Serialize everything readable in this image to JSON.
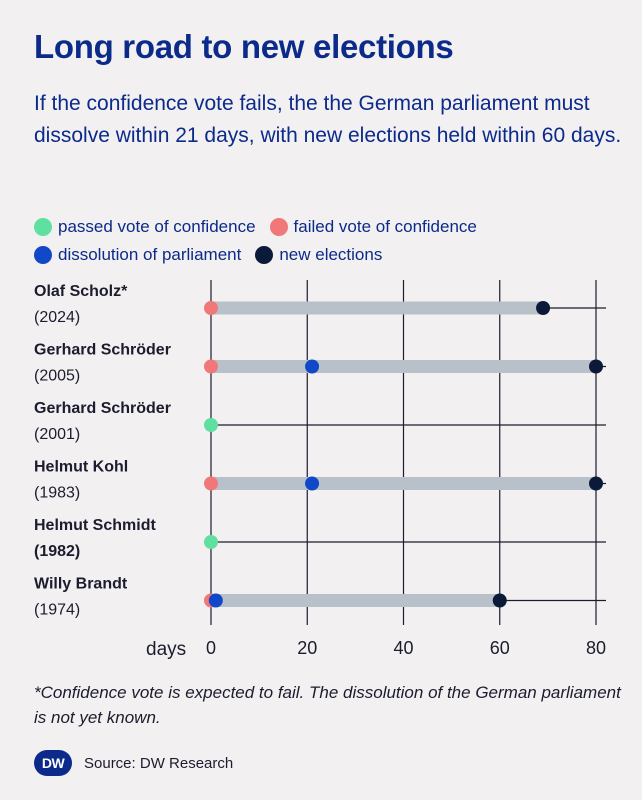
{
  "header": {
    "title": "Long road to new elections",
    "subtitle": "If the confidence vote fails, the the German parliament must dissolve within 21 days, with new elections held within 60 days."
  },
  "legend": {
    "passed": "passed vote of confidence",
    "failed": "failed vote of confidence",
    "dissolution": "dissolution of parliament",
    "elections": "new elections"
  },
  "colors": {
    "passed": "#5fe0a0",
    "failed": "#f07878",
    "dissolution": "#1148c8",
    "elections": "#0c1a3a",
    "bar": "#b8c1c9",
    "title": "#0b2a8a"
  },
  "chart_data": {
    "type": "timeline-dot",
    "xlabel": "days",
    "xlim": [
      0,
      82
    ],
    "xticks": [
      0,
      20,
      40,
      60,
      80
    ],
    "rows": [
      {
        "name": "Olaf Scholz*",
        "year": "(2024)",
        "outcome": "failed",
        "dissolution": null,
        "election": 69
      },
      {
        "name": "Gerhard Schröder",
        "year": "(2005)",
        "outcome": "failed",
        "dissolution": 21,
        "election": 80
      },
      {
        "name": "Gerhard Schröder",
        "year": "(2001)",
        "outcome": "passed",
        "dissolution": null,
        "election": null
      },
      {
        "name": "Helmut Kohl",
        "year": "(1983)",
        "outcome": "failed",
        "dissolution": 21,
        "election": 80
      },
      {
        "name": "Helmut Schmidt",
        "year": "(1982)",
        "outcome": "passed",
        "dissolution": null,
        "election": null,
        "year_bold": true
      },
      {
        "name": "Willy Brandt",
        "year": "(1974)",
        "outcome": "failed",
        "dissolution": 1,
        "election": 60
      }
    ]
  },
  "footer": {
    "footnote": "*Confidence vote is expected to fail. The dissolution of the German parliament is not yet known.",
    "logo": "DW",
    "source": "Source: DW Research"
  }
}
